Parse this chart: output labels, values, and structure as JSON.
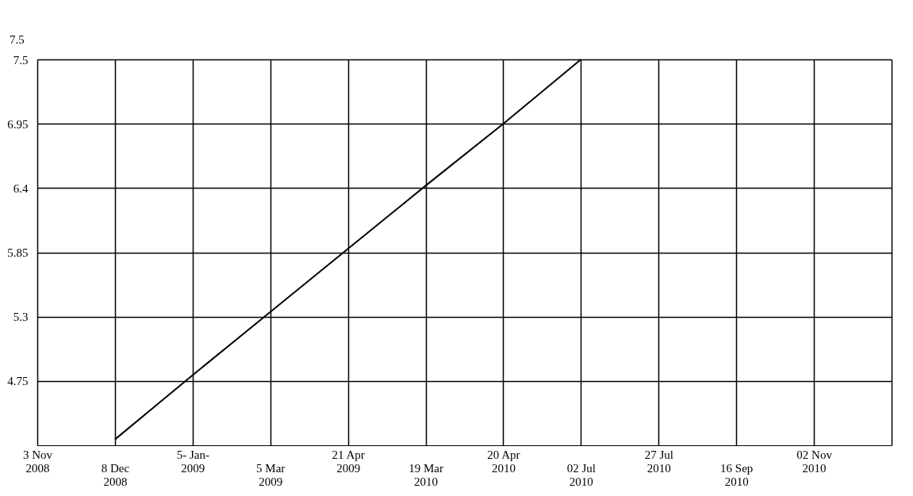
{
  "chart_data": {
    "type": "line",
    "categories": [
      "3 Nov 2008",
      "8 Dec 2008",
      "5- Jan-2009",
      "5 Mar 2009",
      "21 Apr 2009",
      "19 Mar 2010",
      "20 Apr 2010",
      "02 Jul 2010",
      "27 Jul 2010",
      "16 Sep 2010",
      "02 Nov 2010",
      null
    ],
    "series": [
      {
        "color": "#000000",
        "values": [
          null,
          4.25,
          4.8,
          5.34,
          5.88,
          6.42,
          6.95,
          7.5,
          null,
          null,
          null,
          null
        ]
      }
    ],
    "ylim": [
      4.2,
      7.5
    ],
    "yticks": [
      4.75,
      5.3,
      5.85,
      6.4,
      6.95,
      7.5
    ],
    "grid": true,
    "annotations": [
      "7.5"
    ]
  }
}
